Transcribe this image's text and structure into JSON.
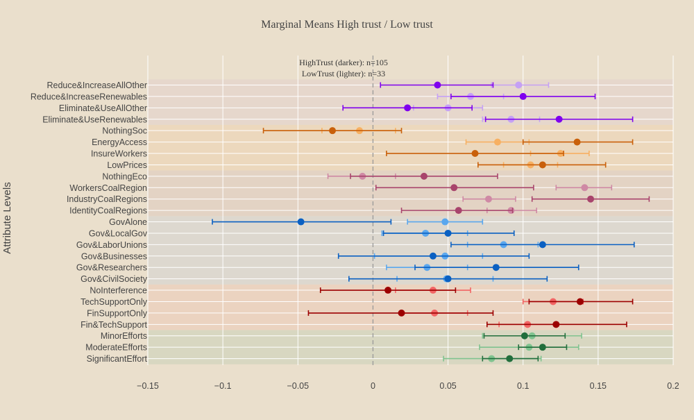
{
  "chart_data": {
    "type": "scatter",
    "title": "Marginal Means High trust / Low trust",
    "ylabel": "Attribute Levels",
    "xlabel": "",
    "xlim": [
      -0.15,
      0.2
    ],
    "xticks": [
      "−0.15",
      "−0.1",
      "−0.05",
      "0",
      "0.05",
      "0.1",
      "0.15",
      "0.2"
    ],
    "xtick_values": [
      -0.15,
      -0.1,
      -0.05,
      0,
      0.05,
      0.1,
      0.15,
      0.2
    ],
    "grid": true,
    "reference_line": 0,
    "annotation": [
      "HighTrust (darker): n=105",
      "LowTrust (lighter): n=33"
    ],
    "categories": [
      "Reduce&IncreaseAllOther",
      "Reduce&IncreaseRenewables",
      "Eliminate&UseAllOther",
      "Eliminate&UseRenewables",
      "NothingSoc",
      "EnergyAccess",
      "InsureWorkers",
      "LowPrices",
      "NothingEco",
      "WorkersCoalRegion",
      "IndustryCoalRegions",
      "IdentityCoalRegions",
      "GovAlone",
      "Gov&LocalGov",
      "Gov&LaborUnions",
      "Gov&Businesses",
      "Gov&Researchers",
      "Gov&CivilSociety",
      "NoInterference",
      "TechSupportOnly",
      "FinSupportOnly",
      "Fin&TechSupport",
      "MinorEfforts",
      "ModerateEfforts",
      "SignificantEffort"
    ],
    "groups": [
      {
        "start": 0,
        "end": 3,
        "band": "#e6d7cc",
        "dark": "#7f00ee",
        "light": "#c5a0f5"
      },
      {
        "start": 4,
        "end": 7,
        "band": "#ecd8bd",
        "dark": "#c9600a",
        "light": "#f7b062"
      },
      {
        "start": 8,
        "end": 11,
        "band": "#e3d3c4",
        "dark": "#a8446c",
        "light": "#cf89a5"
      },
      {
        "start": 12,
        "end": 17,
        "band": "#ddd8cf",
        "dark": "#0a60c2",
        "light": "#5aa7ee"
      },
      {
        "start": 18,
        "end": 21,
        "band": "#ebd3c0",
        "dark": "#9c0000",
        "light": "#f26565"
      },
      {
        "start": 22,
        "end": 24,
        "band": "#d8d7c1",
        "dark": "#216e3c",
        "light": "#7fc38f"
      }
    ],
    "series": [
      {
        "name": "HighTrust",
        "values": [
          0.043,
          0.1,
          0.023,
          0.124,
          -0.027,
          0.136,
          0.068,
          0.113,
          0.034,
          0.054,
          0.145,
          0.057,
          -0.048,
          0.05,
          0.113,
          0.04,
          0.082,
          0.05,
          0.01,
          0.138,
          0.019,
          0.122,
          0.101,
          0.113,
          0.091
        ],
        "lower": [
          0.005,
          0.052,
          -0.02,
          0.075,
          -0.073,
          0.1,
          0.009,
          0.07,
          -0.015,
          0.002,
          0.106,
          0.019,
          -0.107,
          0.007,
          0.052,
          -0.023,
          0.028,
          -0.016,
          -0.035,
          0.104,
          -0.043,
          0.076,
          0.074,
          0.097,
          0.073
        ],
        "upper": [
          0.08,
          0.148,
          0.066,
          0.173,
          0.019,
          0.173,
          0.127,
          0.155,
          0.083,
          0.107,
          0.184,
          0.093,
          0.012,
          0.094,
          0.174,
          0.104,
          0.137,
          0.116,
          0.055,
          0.173,
          0.08,
          0.169,
          0.128,
          0.129,
          0.11
        ]
      },
      {
        "name": "LowTrust",
        "values": [
          0.097,
          0.065,
          0.05,
          0.092,
          -0.009,
          0.083,
          0.125,
          0.105,
          -0.007,
          0.141,
          0.077,
          0.092,
          0.048,
          0.035,
          0.087,
          0.048,
          0.036,
          0.049,
          0.04,
          0.12,
          0.041,
          0.103,
          0.106,
          0.104,
          0.079
        ],
        "lower": [
          0.079,
          0.043,
          0.027,
          0.073,
          -0.034,
          0.062,
          0.105,
          0.087,
          -0.03,
          0.122,
          0.06,
          0.076,
          0.023,
          0.006,
          0.063,
          0.001,
          0.009,
          0.016,
          0.015,
          0.1,
          0.02,
          0.084,
          0.073,
          0.071,
          0.047
        ],
        "upper": [
          0.117,
          0.087,
          0.073,
          0.111,
          0.015,
          0.104,
          0.144,
          0.123,
          0.015,
          0.159,
          0.095,
          0.109,
          0.073,
          0.063,
          0.11,
          0.073,
          0.063,
          0.08,
          0.065,
          0.14,
          0.063,
          0.122,
          0.139,
          0.137,
          0.112
        ]
      }
    ]
  }
}
